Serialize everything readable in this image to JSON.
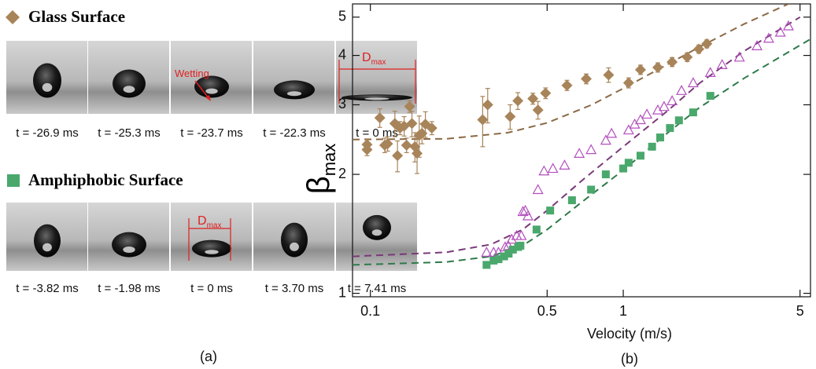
{
  "panel_a": {
    "rows": [
      {
        "times": [
          "t = -26.9 ms",
          "t = -25.3 ms",
          "t = -23.7 ms",
          "t = -22.3 ms",
          "t = 0 ms"
        ]
      },
      {
        "times": [
          "t = -3.82 ms",
          "t = -1.98 ms",
          "t = 0 ms",
          "t = 3.70 ms",
          "t = 7.41 ms"
        ]
      }
    ],
    "wetting": "Wetting",
    "dmax": {
      "main": "D",
      "sub": "max"
    },
    "caption": "(a)"
  },
  "chart_data": {
    "type": "scatter",
    "caption": "(b)",
    "xlabel": "Velocity (m/s)",
    "ylabel": {
      "main": "β",
      "sub": "max"
    },
    "xscale": "log",
    "yscale": "log",
    "xlim": [
      0.085,
      5.5
    ],
    "ylim": [
      0.98,
      5.4
    ],
    "xticks": [
      0.1,
      0.5,
      1,
      5
    ],
    "yticks": [
      1,
      2,
      3,
      4,
      5
    ],
    "series": [
      {
        "name": "Glass Surface",
        "color": "#a8845a",
        "marker": "diamond",
        "x": [
          0.097,
          0.097,
          0.109,
          0.114,
          0.117,
          0.125,
          0.128,
          0.131,
          0.136,
          0.139,
          0.143,
          0.146,
          0.15,
          0.153,
          0.156,
          0.16,
          0.165,
          0.175,
          0.278,
          0.291,
          0.357,
          0.383,
          0.439,
          0.46,
          0.493,
          0.599,
          0.714,
          0.875,
          1.05,
          1.17,
          1.37,
          1.56,
          1.79,
          1.99,
          2.14
        ],
        "values": [
          2.38,
          2.31,
          2.78,
          2.37,
          2.39,
          2.69,
          2.23,
          2.62,
          2.65,
          2.37,
          2.97,
          2.69,
          2.35,
          2.26,
          2.51,
          2.54,
          2.68,
          2.62,
          2.75,
          3.0,
          2.8,
          3.07,
          3.11,
          2.91,
          3.21,
          3.36,
          3.49,
          3.57,
          3.41,
          3.68,
          3.73,
          3.85,
          3.96,
          4.15,
          4.28
        ],
        "errors": [
          0.08,
          0.08,
          0.15,
          0.1,
          0.1,
          0.2,
          0.2,
          0.1,
          0.15,
          0.1,
          0.1,
          0.2,
          0.2,
          0.25,
          0.3,
          0.15,
          0.2,
          0.1,
          0.4,
          0.3,
          0.2,
          0.15,
          0.1,
          0.15,
          0.1,
          0.1,
          0.1,
          0.15,
          0.1,
          0.1,
          0.1,
          0.1,
          0.1,
          0.1,
          0.1
        ]
      },
      {
        "color": "#b24fbd",
        "marker": "triangle",
        "x": [
          0.288,
          0.307,
          0.321,
          0.341,
          0.351,
          0.362,
          0.379,
          0.395,
          0.401,
          0.41,
          0.42,
          0.46,
          0.486,
          0.527,
          0.586,
          0.67,
          0.746,
          0.853,
          0.899,
          1.05,
          1.11,
          1.17,
          1.24,
          1.37,
          1.45,
          1.56,
          1.7,
          1.89,
          2.21,
          2.46,
          2.88,
          3.38,
          3.76,
          4.18,
          4.5
        ],
        "values": [
          1.27,
          1.27,
          1.27,
          1.31,
          1.32,
          1.37,
          1.4,
          1.4,
          1.61,
          1.62,
          1.57,
          1.83,
          2.04,
          2.07,
          2.11,
          2.26,
          2.31,
          2.44,
          2.54,
          2.59,
          2.68,
          2.75,
          2.84,
          2.91,
          2.97,
          3.07,
          3.26,
          3.41,
          3.62,
          3.79,
          3.96,
          4.23,
          4.42,
          4.58,
          4.75
        ]
      },
      {
        "name": "Amphiphobic Surface",
        "color": "#4aa86c",
        "marker": "square",
        "x": [
          0.288,
          0.307,
          0.321,
          0.338,
          0.352,
          0.366,
          0.384,
          0.392,
          0.454,
          0.514,
          0.627,
          0.746,
          0.853,
          1.0,
          1.05,
          1.17,
          1.3,
          1.4,
          1.53,
          1.66,
          1.89,
          2.21
        ],
        "values": [
          1.18,
          1.21,
          1.22,
          1.24,
          1.26,
          1.29,
          1.31,
          1.32,
          1.45,
          1.62,
          1.72,
          1.83,
          2.0,
          2.07,
          2.14,
          2.23,
          2.35,
          2.48,
          2.62,
          2.74,
          2.87,
          3.16
        ]
      },
      {
        "color": "#8b6a45",
        "marker": "dashed-line",
        "x": [
          0.085,
          0.2,
          0.35,
          0.5,
          0.75,
          1,
          1.5,
          2,
          3,
          4.5
        ],
        "values": [
          2.45,
          2.46,
          2.55,
          2.7,
          3.0,
          3.3,
          3.8,
          4.2,
          4.8,
          5.4
        ]
      },
      {
        "color": "#7a3a7a",
        "marker": "dashed-line",
        "x": [
          0.085,
          0.2,
          0.3,
          0.4,
          0.5,
          0.7,
          1,
          1.5,
          2,
          3,
          5
        ],
        "values": [
          1.24,
          1.27,
          1.33,
          1.45,
          1.62,
          1.95,
          2.35,
          2.9,
          3.4,
          4.1,
          5.0
        ]
      },
      {
        "color": "#2f7a4a",
        "marker": "dashed-line",
        "x": [
          0.085,
          0.2,
          0.3,
          0.4,
          0.5,
          0.7,
          1,
          1.5,
          2,
          3,
          5.5
        ],
        "values": [
          1.18,
          1.2,
          1.24,
          1.32,
          1.45,
          1.72,
          2.05,
          2.55,
          2.95,
          3.5,
          4.4
        ]
      }
    ]
  }
}
